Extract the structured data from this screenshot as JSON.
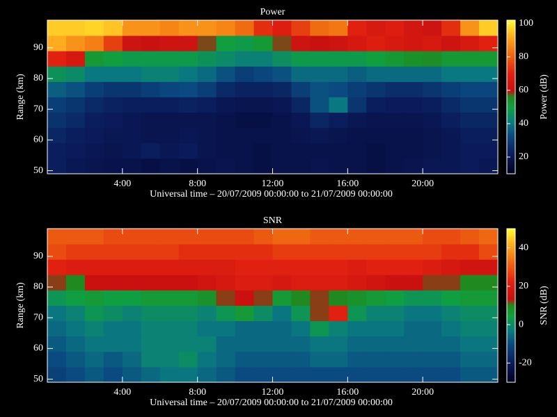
{
  "chart_data": [
    {
      "type": "heatmap",
      "title": "Power",
      "x_label": "Universal time – 20/07/2009 00:00:00 to 21/07/2009 00:00:00",
      "y_label": "Range (km)",
      "colorbar_label": "Power (dB)",
      "x": [
        0,
        1,
        2,
        3,
        4,
        5,
        6,
        7,
        8,
        9,
        10,
        11,
        12,
        13,
        14,
        15,
        16,
        17,
        18,
        19,
        20,
        21,
        22,
        23
      ],
      "y": [
        49,
        54,
        59,
        64,
        69,
        74,
        79,
        84,
        89,
        94
      ],
      "z": [
        [
          22,
          20,
          19,
          18,
          18,
          17,
          18,
          17,
          18,
          19,
          18,
          17,
          18,
          18,
          19,
          18,
          18,
          17,
          18,
          19,
          20,
          20,
          21,
          20
        ],
        [
          22,
          21,
          20,
          19,
          20,
          22,
          20,
          21,
          19,
          18,
          18,
          17,
          18,
          18,
          18,
          18,
          18,
          17,
          18,
          18,
          19,
          20,
          21,
          21
        ],
        [
          24,
          22,
          21,
          20,
          20,
          19,
          19,
          20,
          19,
          18,
          18,
          18,
          18,
          19,
          20,
          19,
          18,
          18,
          18,
          18,
          19,
          20,
          22,
          22
        ],
        [
          27,
          25,
          22,
          21,
          20,
          19,
          19,
          19,
          19,
          18,
          17,
          17,
          18,
          20,
          24,
          22,
          20,
          19,
          19,
          19,
          20,
          22,
          24,
          24
        ],
        [
          30,
          28,
          25,
          23,
          22,
          22,
          22,
          23,
          22,
          20,
          19,
          19,
          20,
          24,
          34,
          40,
          28,
          22,
          21,
          21,
          22,
          25,
          28,
          28
        ],
        [
          36,
          34,
          30,
          28,
          28,
          30,
          32,
          33,
          30,
          25,
          23,
          23,
          24,
          30,
          34,
          33,
          30,
          28,
          26,
          26,
          28,
          30,
          32,
          32
        ],
        [
          46,
          44,
          40,
          40,
          40,
          42,
          42,
          40,
          38,
          34,
          30,
          32,
          34,
          38,
          38,
          38,
          36,
          38,
          38,
          38,
          38,
          40,
          40,
          40
        ],
        [
          70,
          65,
          52,
          50,
          48,
          48,
          48,
          48,
          46,
          44,
          42,
          42,
          45,
          48,
          48,
          48,
          48,
          50,
          52,
          54,
          55,
          52,
          52,
          52
        ],
        [
          92,
          88,
          85,
          75,
          62,
          60,
          62,
          62,
          58,
          50,
          48,
          52,
          58,
          62,
          60,
          62,
          65,
          68,
          66,
          64,
          66,
          62,
          66,
          70
        ],
        [
          96,
          96,
          97,
          95,
          88,
          88,
          86,
          88,
          88,
          86,
          82,
          72,
          68,
          75,
          82,
          84,
          70,
          66,
          68,
          64,
          62,
          72,
          88,
          96
        ]
      ],
      "xlim": [
        0,
        24
      ],
      "ylim": [
        49,
        99
      ],
      "xticks": [
        {
          "value": 4,
          "label": "4:00"
        },
        {
          "value": 8,
          "label": "8:00"
        },
        {
          "value": 12,
          "label": "12:00"
        },
        {
          "value": 16,
          "label": "16:00"
        },
        {
          "value": 20,
          "label": "20:00"
        }
      ],
      "yticks": [
        50,
        60,
        70,
        80,
        90
      ],
      "clim": [
        10,
        102
      ],
      "cticks": [
        20,
        40,
        60,
        80,
        100
      ],
      "colormap_stops": [
        0,
        0.12,
        0.25,
        0.33,
        0.43,
        0.5,
        0.54,
        0.65,
        0.78,
        0.9,
        1
      ],
      "colormap_colors": [
        "#000020",
        "#0a1a5a",
        "#0a4a80",
        "#0a7a80",
        "#10a040",
        "#208a20",
        "#c81010",
        "#e02010",
        "#f06a10",
        "#ffb020",
        "#ffff30"
      ]
    },
    {
      "type": "heatmap",
      "title": "SNR",
      "x_label": "Universal time – 20/07/2009 00:00:00 to 21/07/2009 00:00:00",
      "y_label": "Range (km)",
      "colorbar_label": "SNR (dB)",
      "x": [
        0,
        1,
        2,
        3,
        4,
        5,
        6,
        7,
        8,
        9,
        10,
        11,
        12,
        13,
        14,
        15,
        16,
        17,
        18,
        19,
        20,
        21,
        22,
        23
      ],
      "y": [
        49,
        54,
        59,
        64,
        69,
        74,
        79,
        84,
        89,
        94
      ],
      "z": [
        [
          -12,
          -10,
          -8,
          -10,
          -8,
          -6,
          -4,
          -4,
          -6,
          -8,
          -10,
          -10,
          -10,
          -10,
          -10,
          -10,
          -10,
          -10,
          -10,
          -10,
          -10,
          -10,
          -8,
          -8
        ],
        [
          -10,
          -8,
          -6,
          -8,
          -6,
          -2,
          -2,
          0,
          -4,
          -6,
          -8,
          -8,
          -8,
          -8,
          -6,
          -6,
          -8,
          -8,
          -8,
          -8,
          -8,
          -8,
          -6,
          -6
        ],
        [
          -8,
          -6,
          -4,
          -4,
          -4,
          -2,
          -2,
          -2,
          -2,
          -6,
          -6,
          -6,
          -6,
          -6,
          -4,
          -4,
          -6,
          -6,
          -6,
          -6,
          -6,
          -6,
          -4,
          -4
        ],
        [
          -6,
          -4,
          -2,
          -4,
          -4,
          -2,
          -2,
          -2,
          -4,
          -4,
          -6,
          -6,
          -6,
          -4,
          2,
          -2,
          -4,
          -4,
          -4,
          -6,
          -6,
          -4,
          -2,
          -2
        ],
        [
          -4,
          -2,
          2,
          0,
          -2,
          0,
          0,
          0,
          -2,
          2,
          6,
          0,
          -4,
          2,
          12,
          22,
          2,
          -2,
          -2,
          -4,
          -4,
          -2,
          0,
          0
        ],
        [
          2,
          4,
          6,
          4,
          4,
          6,
          6,
          6,
          8,
          12,
          14,
          12,
          6,
          10,
          12,
          10,
          8,
          6,
          4,
          2,
          2,
          4,
          6,
          6
        ],
        [
          12,
          10,
          14,
          14,
          14,
          14,
          14,
          14,
          16,
          18,
          20,
          20,
          18,
          20,
          20,
          20,
          18,
          16,
          14,
          14,
          12,
          12,
          10,
          10
        ],
        [
          22,
          20,
          20,
          20,
          20,
          20,
          20,
          20,
          20,
          20,
          22,
          22,
          22,
          22,
          22,
          22,
          20,
          22,
          22,
          22,
          20,
          18,
          16,
          16
        ],
        [
          28,
          26,
          26,
          26,
          26,
          26,
          26,
          24,
          24,
          24,
          24,
          24,
          26,
          26,
          26,
          26,
          26,
          26,
          26,
          26,
          26,
          24,
          24,
          28
        ],
        [
          30,
          30,
          30,
          28,
          28,
          28,
          28,
          28,
          28,
          28,
          28,
          30,
          32,
          32,
          30,
          30,
          30,
          30,
          30,
          30,
          28,
          28,
          30,
          32
        ]
      ],
      "xlim": [
        0,
        24
      ],
      "ylim": [
        49,
        99
      ],
      "xticks": [
        {
          "value": 4,
          "label": "4:00"
        },
        {
          "value": 8,
          "label": "8:00"
        },
        {
          "value": 12,
          "label": "12:00"
        },
        {
          "value": 16,
          "label": "16:00"
        },
        {
          "value": 20,
          "label": "20:00"
        }
      ],
      "yticks": [
        50,
        60,
        70,
        80,
        90
      ],
      "clim": [
        -30,
        50
      ],
      "cticks": [
        -20,
        0,
        20,
        40
      ],
      "colormap_stops": [
        0,
        0.12,
        0.25,
        0.33,
        0.43,
        0.5,
        0.54,
        0.65,
        0.78,
        0.9,
        1
      ],
      "colormap_colors": [
        "#000020",
        "#0a1a5a",
        "#0a4a80",
        "#0a7a80",
        "#10a040",
        "#208a20",
        "#c81010",
        "#e02010",
        "#f06a10",
        "#ffb020",
        "#ffff30"
      ]
    }
  ]
}
